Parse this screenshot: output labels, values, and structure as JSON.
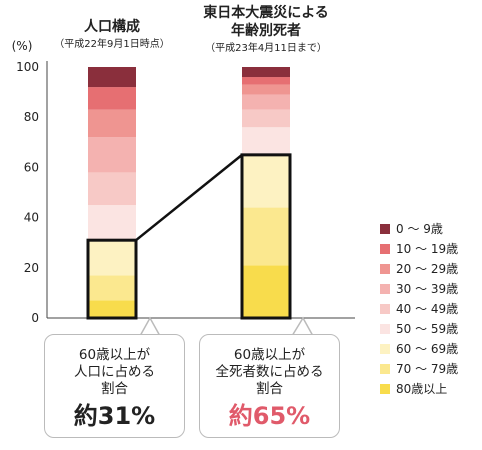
{
  "chart_data": {
    "type": "bar",
    "stacked": true,
    "y_unit": "(%)",
    "ylim": [
      0,
      100
    ],
    "yticks": [
      "0",
      "20",
      "40",
      "60",
      "80",
      "100"
    ],
    "grid": false,
    "legend_position": "right",
    "categories": [
      {
        "title_lines": [
          "人口構成"
        ],
        "subtitle": "（平成22年9月1日時点）"
      },
      {
        "title_lines": [
          "東日本大震災による",
          "年齢別死者"
        ],
        "subtitle": "（平成23年4月11日まで）"
      }
    ],
    "series": [
      {
        "name": "80歳以上",
        "color": "#f8dc4c",
        "values": [
          7,
          21
        ]
      },
      {
        "name": "70 ～ 79歳",
        "color": "#fbe88f",
        "values": [
          10,
          23
        ]
      },
      {
        "name": "60 ～ 69歳",
        "color": "#fdf2c2",
        "values": [
          14,
          21
        ]
      },
      {
        "name": "50 ～ 59歳",
        "color": "#fbe4e2",
        "values": [
          14,
          11
        ]
      },
      {
        "name": "40 ～ 49歳",
        "color": "#f7c9c6",
        "values": [
          13,
          7
        ]
      },
      {
        "name": "30 ～ 39歳",
        "color": "#f4b2b0",
        "values": [
          14,
          6
        ]
      },
      {
        "name": "20 ～ 29歳",
        "color": "#ef9591",
        "values": [
          11,
          4
        ]
      },
      {
        "name": "10 ～ 19歳",
        "color": "#e66f72",
        "values": [
          9,
          3
        ]
      },
      {
        "name": "0 ～ 9歳",
        "color": "#8a2f3c",
        "values": [
          8,
          4
        ]
      }
    ],
    "highlight_share_60_plus": [
      31,
      65
    ]
  },
  "callouts": {
    "left": {
      "lines": [
        "60歳以上が",
        "人口に占める",
        "割合"
      ],
      "value": "約31%"
    },
    "right": {
      "lines": [
        "60歳以上が",
        "全死者数に占める",
        "割合"
      ],
      "value": "約65%"
    }
  }
}
